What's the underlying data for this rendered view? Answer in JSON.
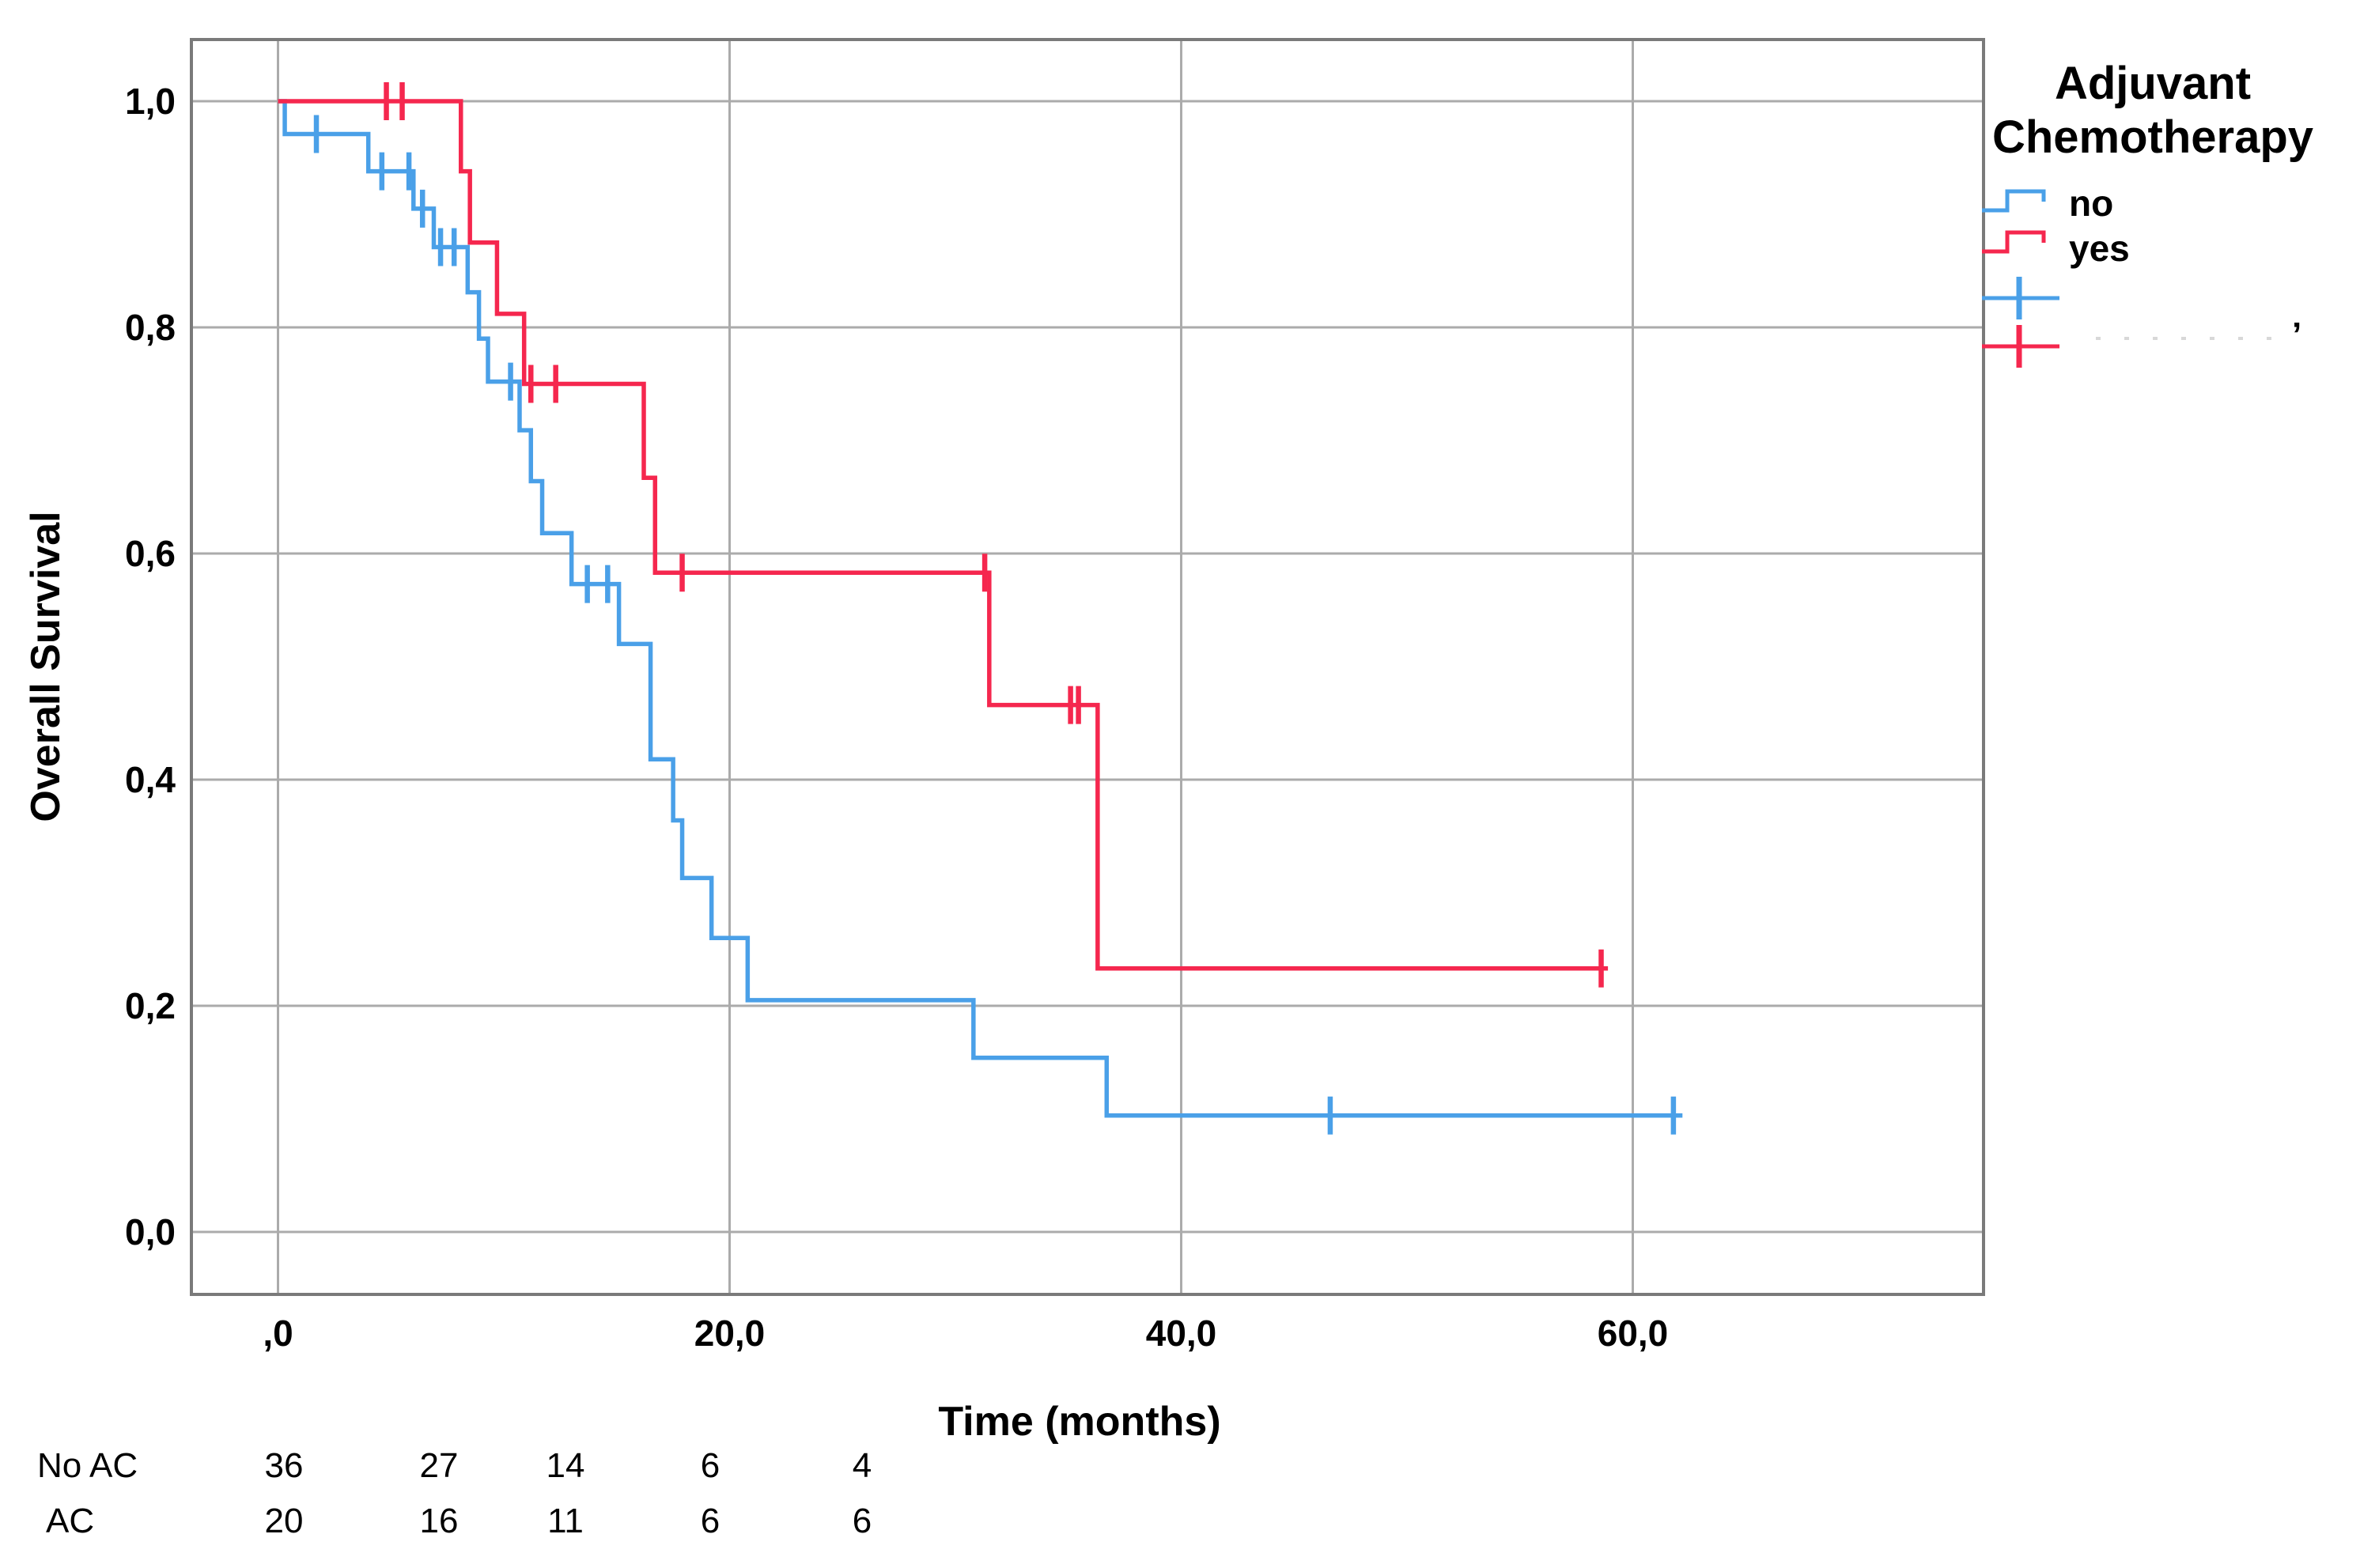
{
  "chart_data": {
    "type": "line",
    "subtype": "kaplan-meier-step",
    "title": "",
    "xlabel": "Time (months)",
    "ylabel": "Overall Survival",
    "grid": true,
    "xlim": [
      -3.8,
      75.6
    ],
    "ylim": [
      -0.055,
      1.055
    ],
    "x_ticks": [
      {
        "value": 0,
        "label": ",0"
      },
      {
        "value": 20,
        "label": "20,0"
      },
      {
        "value": 40,
        "label": "40,0"
      },
      {
        "value": 60,
        "label": "60,0"
      }
    ],
    "y_ticks": [
      {
        "value": 1.0,
        "label": "1,0"
      },
      {
        "value": 0.8,
        "label": "0,8"
      },
      {
        "value": 0.6,
        "label": "0,6"
      },
      {
        "value": 0.4,
        "label": "0,4"
      },
      {
        "value": 0.2,
        "label": "0,2"
      },
      {
        "value": 0.0,
        "label": "0,0"
      }
    ],
    "series": [
      {
        "name": "no",
        "color": "#4AA0E8",
        "steps": [
          [
            0,
            1.0
          ],
          [
            0.3,
            0.971
          ],
          [
            4.0,
            0.938
          ],
          [
            6.0,
            0.905
          ],
          [
            6.9,
            0.871
          ],
          [
            8.4,
            0.831
          ],
          [
            8.9,
            0.79
          ],
          [
            9.3,
            0.752
          ],
          [
            10.7,
            0.709
          ],
          [
            11.2,
            0.664
          ],
          [
            11.7,
            0.618
          ],
          [
            13.0,
            0.573
          ],
          [
            15.1,
            0.52
          ],
          [
            16.5,
            0.418
          ],
          [
            17.5,
            0.364
          ],
          [
            17.9,
            0.313
          ],
          [
            19.2,
            0.26
          ],
          [
            20.8,
            0.205
          ],
          [
            30.8,
            0.154
          ],
          [
            36.7,
            0.103
          ]
        ],
        "end_t": 62.2,
        "censored": [
          [
            1.7,
            0.971
          ],
          [
            4.6,
            0.938
          ],
          [
            5.8,
            0.938
          ],
          [
            6.4,
            0.905
          ],
          [
            7.2,
            0.871
          ],
          [
            7.8,
            0.871
          ],
          [
            10.3,
            0.752
          ],
          [
            13.7,
            0.573
          ],
          [
            14.6,
            0.573
          ],
          [
            46.6,
            0.103
          ],
          [
            61.8,
            0.103
          ]
        ]
      },
      {
        "name": "yes",
        "color": "#F5274E",
        "steps": [
          [
            0,
            1.0
          ],
          [
            8.1,
            0.938
          ],
          [
            8.5,
            0.875
          ],
          [
            9.7,
            0.812
          ],
          [
            10.9,
            0.75
          ],
          [
            16.2,
            0.667
          ],
          [
            16.7,
            0.583
          ],
          [
            31.5,
            0.466
          ],
          [
            36.3,
            0.233
          ]
        ],
        "end_t": 58.9,
        "censored": [
          [
            4.8,
            1.0
          ],
          [
            5.5,
            1.0
          ],
          [
            11.2,
            0.75
          ],
          [
            12.3,
            0.75
          ],
          [
            17.9,
            0.583
          ],
          [
            31.3,
            0.583
          ],
          [
            35.1,
            0.466
          ],
          [
            35.45,
            0.466
          ],
          [
            58.6,
            0.233
          ]
        ]
      }
    ],
    "legend": {
      "title": [
        "Adjuvant",
        "Chemotherapy"
      ],
      "entries": [
        {
          "label": "no",
          "type": "step",
          "color": "#4AA0E8"
        },
        {
          "label": "yes",
          "type": "step",
          "color": "#F5274E"
        },
        {
          "label": "",
          "type": "censor",
          "color": "#4AA0E8"
        },
        {
          "label": "",
          "type": "censor",
          "color": "#F5274E"
        }
      ],
      "artifact": "’"
    },
    "at_risk": {
      "rows": [
        {
          "label": "No AC",
          "counts": [
            "36",
            "27",
            "14",
            "6",
            "4"
          ]
        },
        {
          "label": "AC",
          "counts": [
            "20",
            "16",
            "11",
            "6",
            "6"
          ]
        }
      ]
    }
  }
}
